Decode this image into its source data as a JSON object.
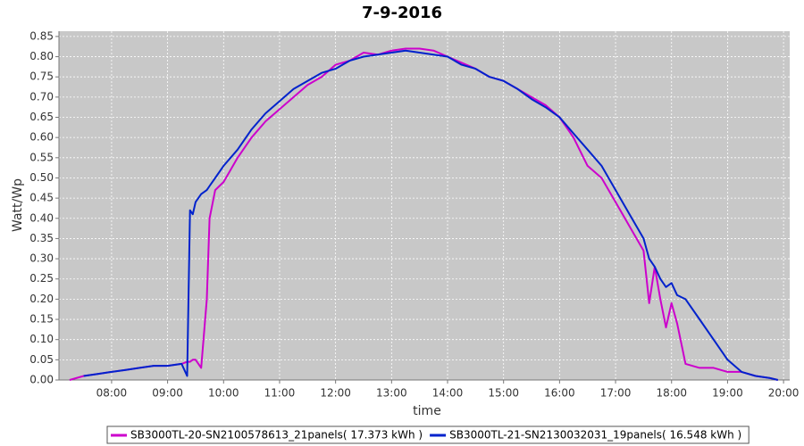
{
  "chart_data": {
    "type": "line",
    "title": "7-9-2016",
    "x_label": "time",
    "y_label": "Watt/Wp",
    "grid": true,
    "background": "#c8c8c8",
    "legend_position": "bottom",
    "xlim": [
      7.06,
      20.11
    ],
    "ylim": [
      0,
      0.863
    ],
    "xticks": [
      {
        "value": 8,
        "label": "08:00"
      },
      {
        "value": 9,
        "label": "09:00"
      },
      {
        "value": 10,
        "label": "10:00"
      },
      {
        "value": 11,
        "label": "11:00"
      },
      {
        "value": 12,
        "label": "12:00"
      },
      {
        "value": 13,
        "label": "13:00"
      },
      {
        "value": 14,
        "label": "14:00"
      },
      {
        "value": 15,
        "label": "15:00"
      },
      {
        "value": 16,
        "label": "16:00"
      },
      {
        "value": 17,
        "label": "17:00"
      },
      {
        "value": 18,
        "label": "18:00"
      },
      {
        "value": 19,
        "label": "19:00"
      },
      {
        "value": 20,
        "label": "20:00"
      }
    ],
    "yticks": [
      {
        "value": 0,
        "label": "0.00"
      },
      0.05,
      {
        "value": 0.1,
        "label": "0.10"
      },
      0.15,
      {
        "value": 0.2,
        "label": "0.20"
      },
      0.25,
      {
        "value": 0.3,
        "label": "0.30"
      },
      0.35,
      {
        "value": 0.4,
        "label": "0.40"
      },
      0.45,
      {
        "value": 0.5,
        "label": "0.50"
      },
      0.55,
      {
        "value": 0.6,
        "label": "0.60"
      },
      0.65,
      {
        "value": 0.7,
        "label": "0.70"
      },
      0.75,
      {
        "value": 0.8,
        "label": "0.80"
      },
      0.85
    ],
    "x": [
      7.25,
      7.5,
      7.75,
      8,
      8.25,
      8.5,
      8.75,
      9,
      9.25,
      9.35,
      9.4,
      9.45,
      9.5,
      9.6,
      9.7,
      9.75,
      9.85,
      10,
      10.25,
      10.5,
      10.75,
      11,
      11.25,
      11.5,
      11.75,
      12,
      12.25,
      12.5,
      12.75,
      13,
      13.25,
      13.5,
      13.75,
      14,
      14.25,
      14.5,
      14.75,
      15,
      15.25,
      15.5,
      15.75,
      16,
      16.25,
      16.5,
      16.75,
      17,
      17.25,
      17.5,
      17.6,
      17.7,
      17.8,
      17.9,
      18,
      18.1,
      18.25,
      18.5,
      18.75,
      19,
      19.25,
      19.5,
      19.75,
      19.9
    ],
    "series": [
      {
        "name": "SB3000TL-20-SN2100578613_21panels( 17.373 kWh )",
        "color": "#cc00cc",
        "values": [
          0.0,
          0.01,
          0.015,
          0.02,
          0.025,
          0.03,
          0.035,
          0.035,
          0.04,
          0.045,
          0.045,
          0.05,
          0.05,
          0.03,
          0.2,
          0.4,
          0.47,
          0.49,
          0.55,
          0.6,
          0.64,
          0.67,
          0.7,
          0.73,
          0.75,
          0.78,
          0.79,
          0.81,
          0.805,
          0.815,
          0.82,
          0.82,
          0.815,
          0.8,
          0.785,
          0.77,
          0.75,
          0.74,
          0.72,
          0.7,
          0.68,
          0.65,
          0.6,
          0.53,
          0.5,
          0.44,
          0.38,
          0.32,
          0.19,
          0.28,
          0.2,
          0.13,
          0.19,
          0.14,
          0.04,
          0.03,
          0.03,
          0.02,
          0.02,
          0.01,
          0.005,
          0.0
        ]
      },
      {
        "name": "SB3000TL-21-SN2130032031_19panels( 16.548 kWh )",
        "color": "#0022cc",
        "values": [
          null,
          0.01,
          0.015,
          0.02,
          0.025,
          0.03,
          0.035,
          0.035,
          0.04,
          0.01,
          0.42,
          0.41,
          0.44,
          0.46,
          0.47,
          0.48,
          0.5,
          0.53,
          0.57,
          0.62,
          0.66,
          0.69,
          0.72,
          0.74,
          0.76,
          0.77,
          0.79,
          0.8,
          0.805,
          0.81,
          0.815,
          0.81,
          0.805,
          0.8,
          0.78,
          0.77,
          0.75,
          0.74,
          0.72,
          0.695,
          0.675,
          0.65,
          0.61,
          0.57,
          0.53,
          0.47,
          0.41,
          0.35,
          0.3,
          0.28,
          0.25,
          0.23,
          0.24,
          0.21,
          0.2,
          0.15,
          0.1,
          0.05,
          0.02,
          0.01,
          0.005,
          0.0
        ]
      }
    ]
  }
}
